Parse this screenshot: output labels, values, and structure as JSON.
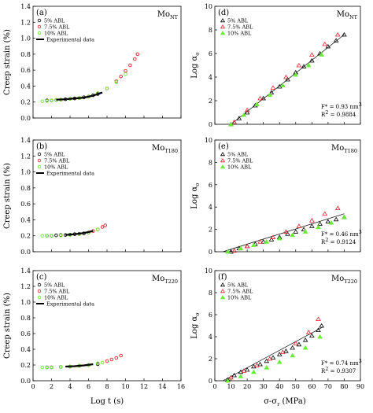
{
  "colors": {
    "black": "#000000",
    "red": "#e8202a",
    "green": "#66ee33"
  },
  "legend_labels": {
    "abl5": "5% ABL",
    "abl75": "7.5% ABL",
    "abl10": "10% ABL",
    "exp": "Experimental data"
  },
  "ylabels": {
    "strain": "Creep strain (%)",
    "log_alpha": "Log α",
    "log_alpha_sub": "σ"
  },
  "xlabels": {
    "left": "Log t (s)",
    "right": "σ-σ",
    "right_sub": "r",
    "right_unit": "(MPa)"
  },
  "chart_data": [
    {
      "id": "a",
      "type": "scatter",
      "panel_label": "(a)",
      "material": {
        "main": "Mo",
        "sub": "NT"
      },
      "xlim": [
        0,
        16
      ],
      "ylim": [
        0,
        1.4
      ],
      "xticks": [
        0,
        2,
        4,
        6,
        8,
        10,
        12,
        14,
        16
      ],
      "yticks": [
        0.0,
        0.2,
        0.4,
        0.6,
        0.8,
        1.0,
        1.2,
        1.4
      ],
      "xticklabels_shown": false,
      "series": [
        {
          "name": "5% ABL",
          "marker": "circle",
          "color": "black",
          "x": [
            1.5,
            2.0,
            2.5,
            3.0,
            3.5,
            4.0,
            4.5,
            5.0,
            5.5,
            6.0,
            6.5,
            7.0
          ],
          "y": [
            0.22,
            0.22,
            0.225,
            0.23,
            0.235,
            0.24,
            0.245,
            0.25,
            0.26,
            0.27,
            0.285,
            0.3
          ]
        },
        {
          "name": "7.5% ABL",
          "marker": "circle",
          "color": "red",
          "x": [
            3.0,
            4.0,
            5.0,
            6.0,
            7.0,
            8.0,
            9.0,
            9.5,
            10.0,
            10.5,
            11.0,
            11.3
          ],
          "y": [
            0.23,
            0.24,
            0.25,
            0.27,
            0.31,
            0.37,
            0.46,
            0.52,
            0.59,
            0.66,
            0.74,
            0.8
          ]
        },
        {
          "name": "10% ABL",
          "marker": "circle",
          "color": "green",
          "x": [
            1.0,
            1.5,
            2.0,
            2.5,
            3.0,
            4.0,
            5.0,
            6.0,
            7.0,
            8.0,
            9.0,
            10.0
          ],
          "y": [
            0.21,
            0.215,
            0.22,
            0.225,
            0.23,
            0.24,
            0.25,
            0.27,
            0.31,
            0.37,
            0.45,
            0.55
          ]
        },
        {
          "name": "Experimental data",
          "marker": "line",
          "color": "black",
          "x": [
            2.5,
            3.5,
            4.5,
            5.5,
            6.5,
            7.5
          ],
          "y": [
            0.23,
            0.235,
            0.245,
            0.255,
            0.28,
            0.32
          ]
        }
      ]
    },
    {
      "id": "b",
      "type": "scatter",
      "panel_label": "(b)",
      "material": {
        "main": "Mo",
        "sub": "T180"
      },
      "xlim": [
        0,
        16
      ],
      "ylim": [
        0,
        1.4
      ],
      "xticks": [
        0,
        2,
        4,
        6,
        8,
        10,
        12,
        14,
        16
      ],
      "yticks": [
        0.0,
        0.2,
        0.4,
        0.6,
        0.8,
        1.0,
        1.2,
        1.4
      ],
      "xticklabels_shown": false,
      "series": [
        {
          "name": "5% ABL",
          "marker": "circle",
          "color": "black",
          "x": [
            1.5,
            2.0,
            2.5,
            3.0,
            3.5,
            4.0,
            4.5,
            5.0,
            5.5,
            6.0
          ],
          "y": [
            0.2,
            0.2,
            0.205,
            0.21,
            0.21,
            0.215,
            0.22,
            0.225,
            0.23,
            0.24
          ]
        },
        {
          "name": "7.5% ABL",
          "marker": "circle",
          "color": "red",
          "x": [
            3.0,
            4.0,
            5.0,
            6.0,
            6.5,
            7.0,
            7.5,
            7.8
          ],
          "y": [
            0.205,
            0.21,
            0.22,
            0.24,
            0.26,
            0.28,
            0.31,
            0.33
          ]
        },
        {
          "name": "10% ABL",
          "marker": "circle",
          "color": "green",
          "x": [
            1.0,
            1.5,
            2.0,
            3.0,
            4.0,
            5.0,
            6.0,
            7.0
          ],
          "y": [
            0.2,
            0.2,
            0.2,
            0.205,
            0.21,
            0.22,
            0.24,
            0.28
          ]
        },
        {
          "name": "Experimental data",
          "marker": "line",
          "color": "black",
          "x": [
            3.5,
            4.5,
            5.5,
            6.5
          ],
          "y": [
            0.21,
            0.22,
            0.235,
            0.26
          ]
        }
      ]
    },
    {
      "id": "c",
      "type": "scatter",
      "panel_label": "(c)",
      "material": {
        "main": "Mo",
        "sub": "T220"
      },
      "xlim": [
        0,
        16
      ],
      "ylim": [
        0,
        1.4
      ],
      "xticks": [
        0,
        2,
        4,
        6,
        8,
        10,
        12,
        14,
        16
      ],
      "yticks": [
        0.0,
        0.2,
        0.4,
        0.6,
        0.8,
        1.0,
        1.2,
        1.4
      ],
      "xticklabels_shown": true,
      "series": [
        {
          "name": "5% ABL",
          "marker": "circle",
          "color": "black",
          "x": [
            1.5,
            2.0,
            3.0,
            4.0,
            5.0,
            6.0,
            7.0
          ],
          "y": [
            0.17,
            0.17,
            0.175,
            0.18,
            0.19,
            0.2,
            0.21
          ]
        },
        {
          "name": "7.5% ABL",
          "marker": "circle",
          "color": "red",
          "x": [
            4.0,
            5.0,
            6.0,
            7.0,
            8.0,
            8.5,
            9.0,
            9.5
          ],
          "y": [
            0.18,
            0.19,
            0.2,
            0.22,
            0.25,
            0.27,
            0.29,
            0.32
          ]
        },
        {
          "name": "10% ABL",
          "marker": "circle",
          "color": "green",
          "x": [
            1.0,
            1.5,
            2.0,
            3.0,
            4.0,
            5.0,
            6.0,
            7.0,
            7.5
          ],
          "y": [
            0.17,
            0.17,
            0.17,
            0.175,
            0.18,
            0.19,
            0.2,
            0.22,
            0.23
          ]
        },
        {
          "name": "Experimental data",
          "marker": "line",
          "color": "black",
          "x": [
            3.5,
            4.5,
            5.5,
            6.5
          ],
          "y": [
            0.18,
            0.185,
            0.195,
            0.21
          ]
        }
      ]
    },
    {
      "id": "d",
      "type": "scatter",
      "panel_label": "(d)",
      "material": {
        "main": "Mo",
        "sub": "NT"
      },
      "xlim": [
        0,
        90
      ],
      "ylim": [
        0,
        10
      ],
      "xticks": [
        0,
        10,
        20,
        30,
        40,
        50,
        60,
        70,
        80,
        90
      ],
      "yticks": [
        0,
        2,
        4,
        6,
        8,
        10
      ],
      "xticklabels_shown": false,
      "annotation": {
        "fstar": "F* = 0.93 nm",
        "fstar_sup": "3",
        "r2": "R",
        "r2_sup": "2",
        "r2_val": " = 0.9884"
      },
      "fit": {
        "x": [
          10,
          80
        ],
        "y": [
          0.0,
          7.6
        ]
      },
      "series": [
        {
          "name": "5% ABL",
          "marker": "triangle",
          "color": "black",
          "x": [
            10,
            15,
            20,
            25,
            30,
            35,
            40,
            45,
            50,
            55,
            60,
            65,
            70,
            75,
            80
          ],
          "y": [
            0.0,
            0.5,
            1.0,
            1.6,
            2.2,
            2.7,
            3.2,
            3.8,
            4.4,
            4.9,
            5.4,
            6.0,
            6.6,
            7.1,
            7.6
          ]
        },
        {
          "name": "7.5% ABL",
          "marker": "triangle",
          "color": "red",
          "x": [
            12,
            20,
            28,
            36,
            44,
            52,
            60,
            68,
            76
          ],
          "y": [
            0.2,
            1.2,
            2.2,
            3.1,
            4.0,
            5.0,
            5.9,
            6.8,
            7.6
          ]
        },
        {
          "name": "10% ABL",
          "marker": "triangle",
          "color": "green",
          "x": [
            10,
            18,
            26,
            34,
            42,
            50,
            58,
            66
          ],
          "y": [
            0.0,
            0.8,
            1.7,
            2.5,
            3.3,
            4.2,
            5.0,
            5.9
          ]
        }
      ]
    },
    {
      "id": "e",
      "type": "scatter",
      "panel_label": "(e)",
      "material": {
        "main": "Mo",
        "sub": "T180"
      },
      "xlim": [
        0,
        90
      ],
      "ylim": [
        0,
        10
      ],
      "xticks": [
        0,
        10,
        20,
        30,
        40,
        50,
        60,
        70,
        80,
        90
      ],
      "yticks": [
        0,
        2,
        4,
        6,
        8,
        10
      ],
      "xticklabels_shown": false,
      "annotation": {
        "fstar": "F* = 0.46 nm",
        "fstar_sup": "3",
        "r2": "R",
        "r2_sup": "2",
        "r2_val": " = 0.9124"
      },
      "fit": {
        "x": [
          5,
          80
        ],
        "y": [
          0.0,
          3.4
        ]
      },
      "series": [
        {
          "name": "5% ABL",
          "marker": "triangle",
          "color": "black",
          "x": [
            10,
            15,
            20,
            25,
            30,
            35,
            40,
            45,
            50,
            55,
            60,
            65,
            70,
            75,
            80
          ],
          "y": [
            0.0,
            0.3,
            0.5,
            0.7,
            0.9,
            1.1,
            1.3,
            1.6,
            1.8,
            2.0,
            2.3,
            2.5,
            2.7,
            2.9,
            3.1
          ]
        },
        {
          "name": "7.5% ABL",
          "marker": "triangle",
          "color": "red",
          "x": [
            12,
            20,
            28,
            36,
            44,
            52,
            60,
            68,
            76
          ],
          "y": [
            0.1,
            0.5,
            0.9,
            1.3,
            1.8,
            2.3,
            2.8,
            3.4,
            3.9
          ]
        },
        {
          "name": "10% ABL",
          "marker": "triangle",
          "color": "green",
          "x": [
            8,
            16,
            24,
            32,
            40,
            48,
            56,
            64,
            72,
            80
          ],
          "y": [
            0.0,
            0.3,
            0.6,
            0.9,
            1.2,
            1.5,
            1.8,
            2.2,
            2.6,
            3.1
          ]
        }
      ]
    },
    {
      "id": "f",
      "type": "scatter",
      "panel_label": "(f)",
      "material": {
        "main": "Mo",
        "sub": "T220"
      },
      "xlim": [
        0,
        90
      ],
      "ylim": [
        0,
        10
      ],
      "xticks": [
        0,
        10,
        20,
        30,
        40,
        50,
        60,
        70,
        80,
        90
      ],
      "xticklabels": [
        "0",
        "10",
        "20",
        "30",
        "40",
        "50",
        "60",
        "70",
        "80",
        "90"
      ],
      "yticks": [
        0,
        2,
        4,
        6,
        8,
        10
      ],
      "xticklabels_shown": true,
      "annotation": {
        "fstar": "F* = 0.74 nm",
        "fstar_sup": "3",
        "r2": "R",
        "r2_sup": "2",
        "r2_val": " = 0.9307"
      },
      "fit": {
        "x": [
          5,
          67
        ],
        "y": [
          0.0,
          4.9
        ]
      },
      "series": [
        {
          "name": "5% ABL",
          "marker": "triangle",
          "color": "black",
          "x": [
            8,
            12,
            16,
            20,
            24,
            28,
            32,
            36,
            40,
            44,
            48,
            52,
            56,
            60,
            64,
            66
          ],
          "y": [
            0.1,
            0.5,
            0.8,
            1.0,
            1.3,
            1.5,
            1.8,
            2.1,
            2.4,
            2.7,
            3.0,
            3.3,
            3.7,
            4.1,
            4.6,
            5.0
          ]
        },
        {
          "name": "7.5% ABL",
          "marker": "triangle",
          "color": "red",
          "x": [
            10,
            18,
            26,
            34,
            42,
            50,
            58,
            64
          ],
          "y": [
            0.3,
            0.9,
            1.4,
            2.0,
            2.6,
            3.4,
            4.4,
            5.6
          ]
        },
        {
          "name": "10% ABL",
          "marker": "triangle",
          "color": "green",
          "x": [
            8,
            16,
            24,
            32,
            40,
            48,
            56,
            65
          ],
          "y": [
            0.0,
            0.4,
            0.8,
            1.2,
            1.7,
            2.3,
            3.0,
            4.0
          ]
        }
      ]
    }
  ]
}
